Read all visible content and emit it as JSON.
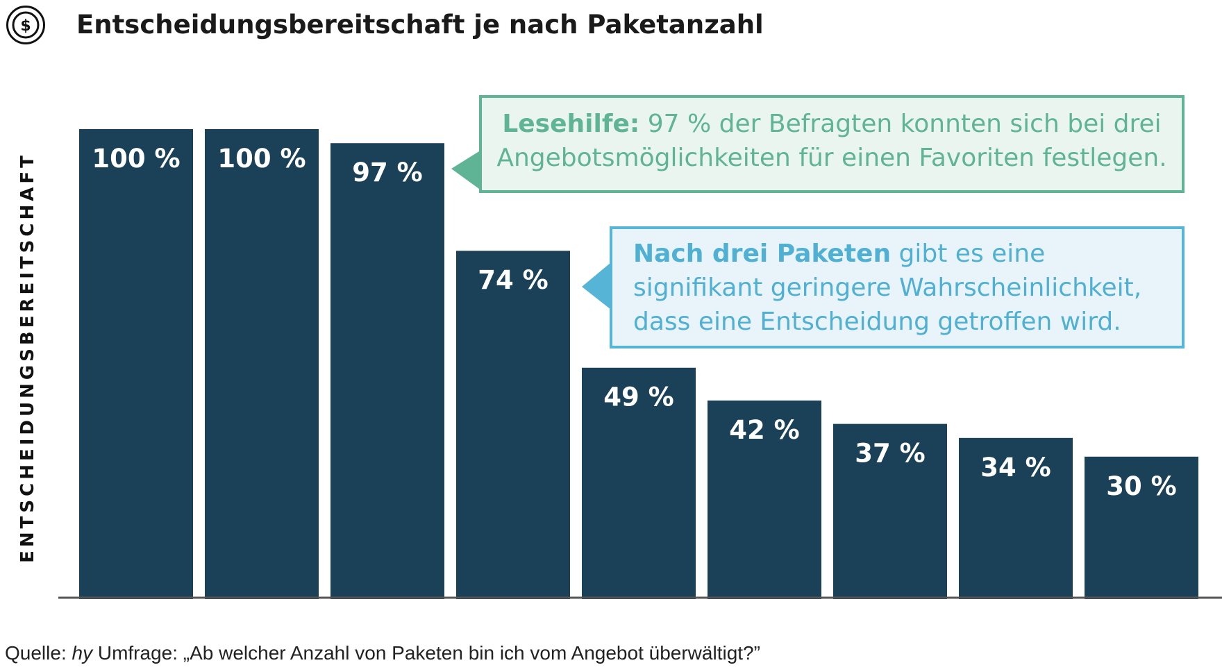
{
  "title": "Entscheidungsbereitschaft je nach Paketanzahl",
  "icon": "dollar-coin-icon",
  "colors": {
    "bar": "#1b4159",
    "axis": "#555555",
    "callout_green_border": "#5fb495",
    "callout_green_bg": "#eaf5f0",
    "callout_blue_border": "#56b4d6",
    "callout_blue_bg": "#e8f4fa"
  },
  "chart_data": {
    "type": "bar",
    "ylabel": "ENTSCHEIDUNGSBEREITSCHAFT",
    "xlabel": "",
    "values": [
      100,
      100,
      97,
      74,
      49,
      42,
      37,
      34,
      30
    ],
    "labels": [
      "100 %",
      "100 %",
      "97 %",
      "74 %",
      "49 %",
      "42 %",
      "37 %",
      "34 %",
      "30 %"
    ],
    "ylim": [
      0,
      100
    ],
    "grid": false,
    "highlight_index": 4
  },
  "callouts": {
    "reading_help": {
      "bold": "Lesehilfe:",
      "text": " 97 % der Befragten konnten sich bei drei Angebotsmöglichkeiten für einen Favoriten festlegen."
    },
    "after_three": {
      "bold": "Nach drei Paketen",
      "text": " gibt es eine signifikant geringere Wahrscheinlichkeit, dass eine Entscheidung getroffen wird."
    }
  },
  "source": {
    "prefix": "Quelle: ",
    "italic": "hy",
    "text": " Umfrage: „Ab welcher Anzahl von Paketen bin ich vom Angebot überwältigt?”"
  }
}
